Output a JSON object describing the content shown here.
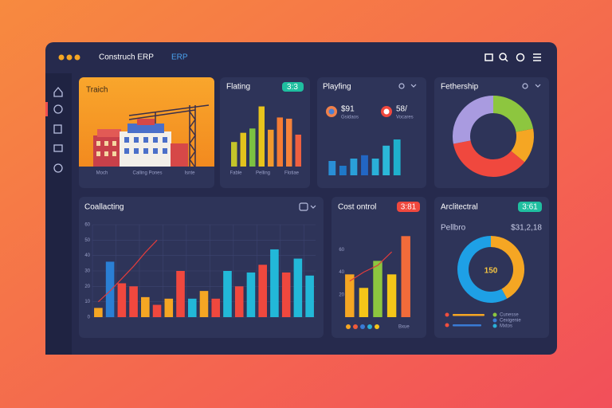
{
  "header": {
    "title": "Construch ERP",
    "suffix": "ERP"
  },
  "panels": [
    {
      "title": "Traich",
      "labels": [
        "Moch",
        "Calling Pones",
        "Isnte"
      ]
    },
    {
      "title": "Flating",
      "badge": "3:3",
      "chart": {
        "type": "bar",
        "ylim": [
          0,
          100
        ],
        "values": [
          40,
          55,
          62,
          98,
          60,
          80,
          78,
          52
        ],
        "colors": [
          "#c3c52a",
          "#e2c21d",
          "#7cc242",
          "#e8c41c",
          "#f29a2e",
          "#f47c34",
          "#f4823a",
          "#ef6040"
        ]
      },
      "labels": [
        "Fable",
        "Pelling",
        "Flotiae"
      ]
    },
    {
      "title": "Playfing",
      "stats": [
        {
          "value": "$91",
          "label": "Gsidaos"
        },
        {
          "value": "58/",
          "label": "Vocares"
        }
      ],
      "chart": {
        "type": "bar",
        "ylim": [
          0,
          100
        ],
        "values": [
          30,
          20,
          35,
          42,
          35,
          62,
          75
        ],
        "colors": [
          "#2a8fd6",
          "#1f78c8",
          "#2aa0d8",
          "#2266c4",
          "#2ab0d8",
          "#2bb8d8",
          "#1fb0cc"
        ]
      }
    },
    {
      "title": "Fethership",
      "chart": {
        "type": "pie",
        "values": [
          22,
          14,
          36,
          28
        ],
        "colors": [
          "#8dc63f",
          "#f5a623",
          "#f0483e",
          "#a99be0"
        ]
      }
    },
    {
      "title": "Coallacting",
      "chart": {
        "type": "bar",
        "ylim": [
          0,
          60
        ],
        "yticks": [
          0,
          10,
          20,
          30,
          40,
          50,
          60
        ],
        "grid": true,
        "values": [
          6,
          36,
          22,
          20,
          13,
          8,
          12,
          30,
          12,
          17,
          12,
          30,
          20,
          29,
          34,
          44,
          29,
          38,
          27
        ],
        "colors": [
          "#f5a623",
          "#2a7fd4",
          "#f0483e",
          "#f0483e",
          "#f5a623",
          "#f0483e",
          "#f5a623",
          "#f0483e",
          "#22b8d8",
          "#f5a623",
          "#f0483e",
          "#22b8d8",
          "#f0483e",
          "#22b8d8",
          "#f0483e",
          "#22b8d8",
          "#f0483e",
          "#22b8d8",
          "#22b8d8"
        ],
        "line": {
          "color": "#e23c3c",
          "values": [
            10,
            17,
            25,
            33,
            42,
            50,
            null,
            null,
            null,
            null,
            null,
            null,
            null,
            null,
            null,
            null,
            null,
            null,
            null
          ]
        }
      }
    },
    {
      "title": "Cost ontrol",
      "badge": "3:81",
      "chart": {
        "type": "bar",
        "ylim": [
          0,
          80
        ],
        "yticks": [
          20,
          40,
          60
        ],
        "values": [
          38,
          26,
          50,
          38,
          72
        ],
        "colors": [
          "#f5a623",
          "#f5c518",
          "#8cc63f",
          "#f5c518",
          "#f26b3a"
        ],
        "line": {
          "color": "#e23c3c",
          "values": [
            32,
            40,
            46,
            58,
            null
          ]
        }
      },
      "dots": [
        "#f5a623",
        "#f05a3a",
        "#3a7bd5",
        "#2ab0d8",
        "#f5c518"
      ],
      "note": "Bxue"
    },
    {
      "title": "Arclitectral",
      "badge": "3:61",
      "label": "Pellbro",
      "amount": "$31,2,18",
      "center": "150",
      "chart": {
        "type": "pie",
        "values": [
          42,
          58
        ],
        "colors": [
          "#f5a623",
          "#1ea0e6"
        ]
      },
      "legend": [
        {
          "name": "Cunesse",
          "color": "#8cc63f"
        },
        {
          "name": "Cexigenie",
          "color": "#3a7bd5"
        },
        {
          "name": "Mxtos",
          "color": "#2ab0d8"
        }
      ]
    }
  ]
}
